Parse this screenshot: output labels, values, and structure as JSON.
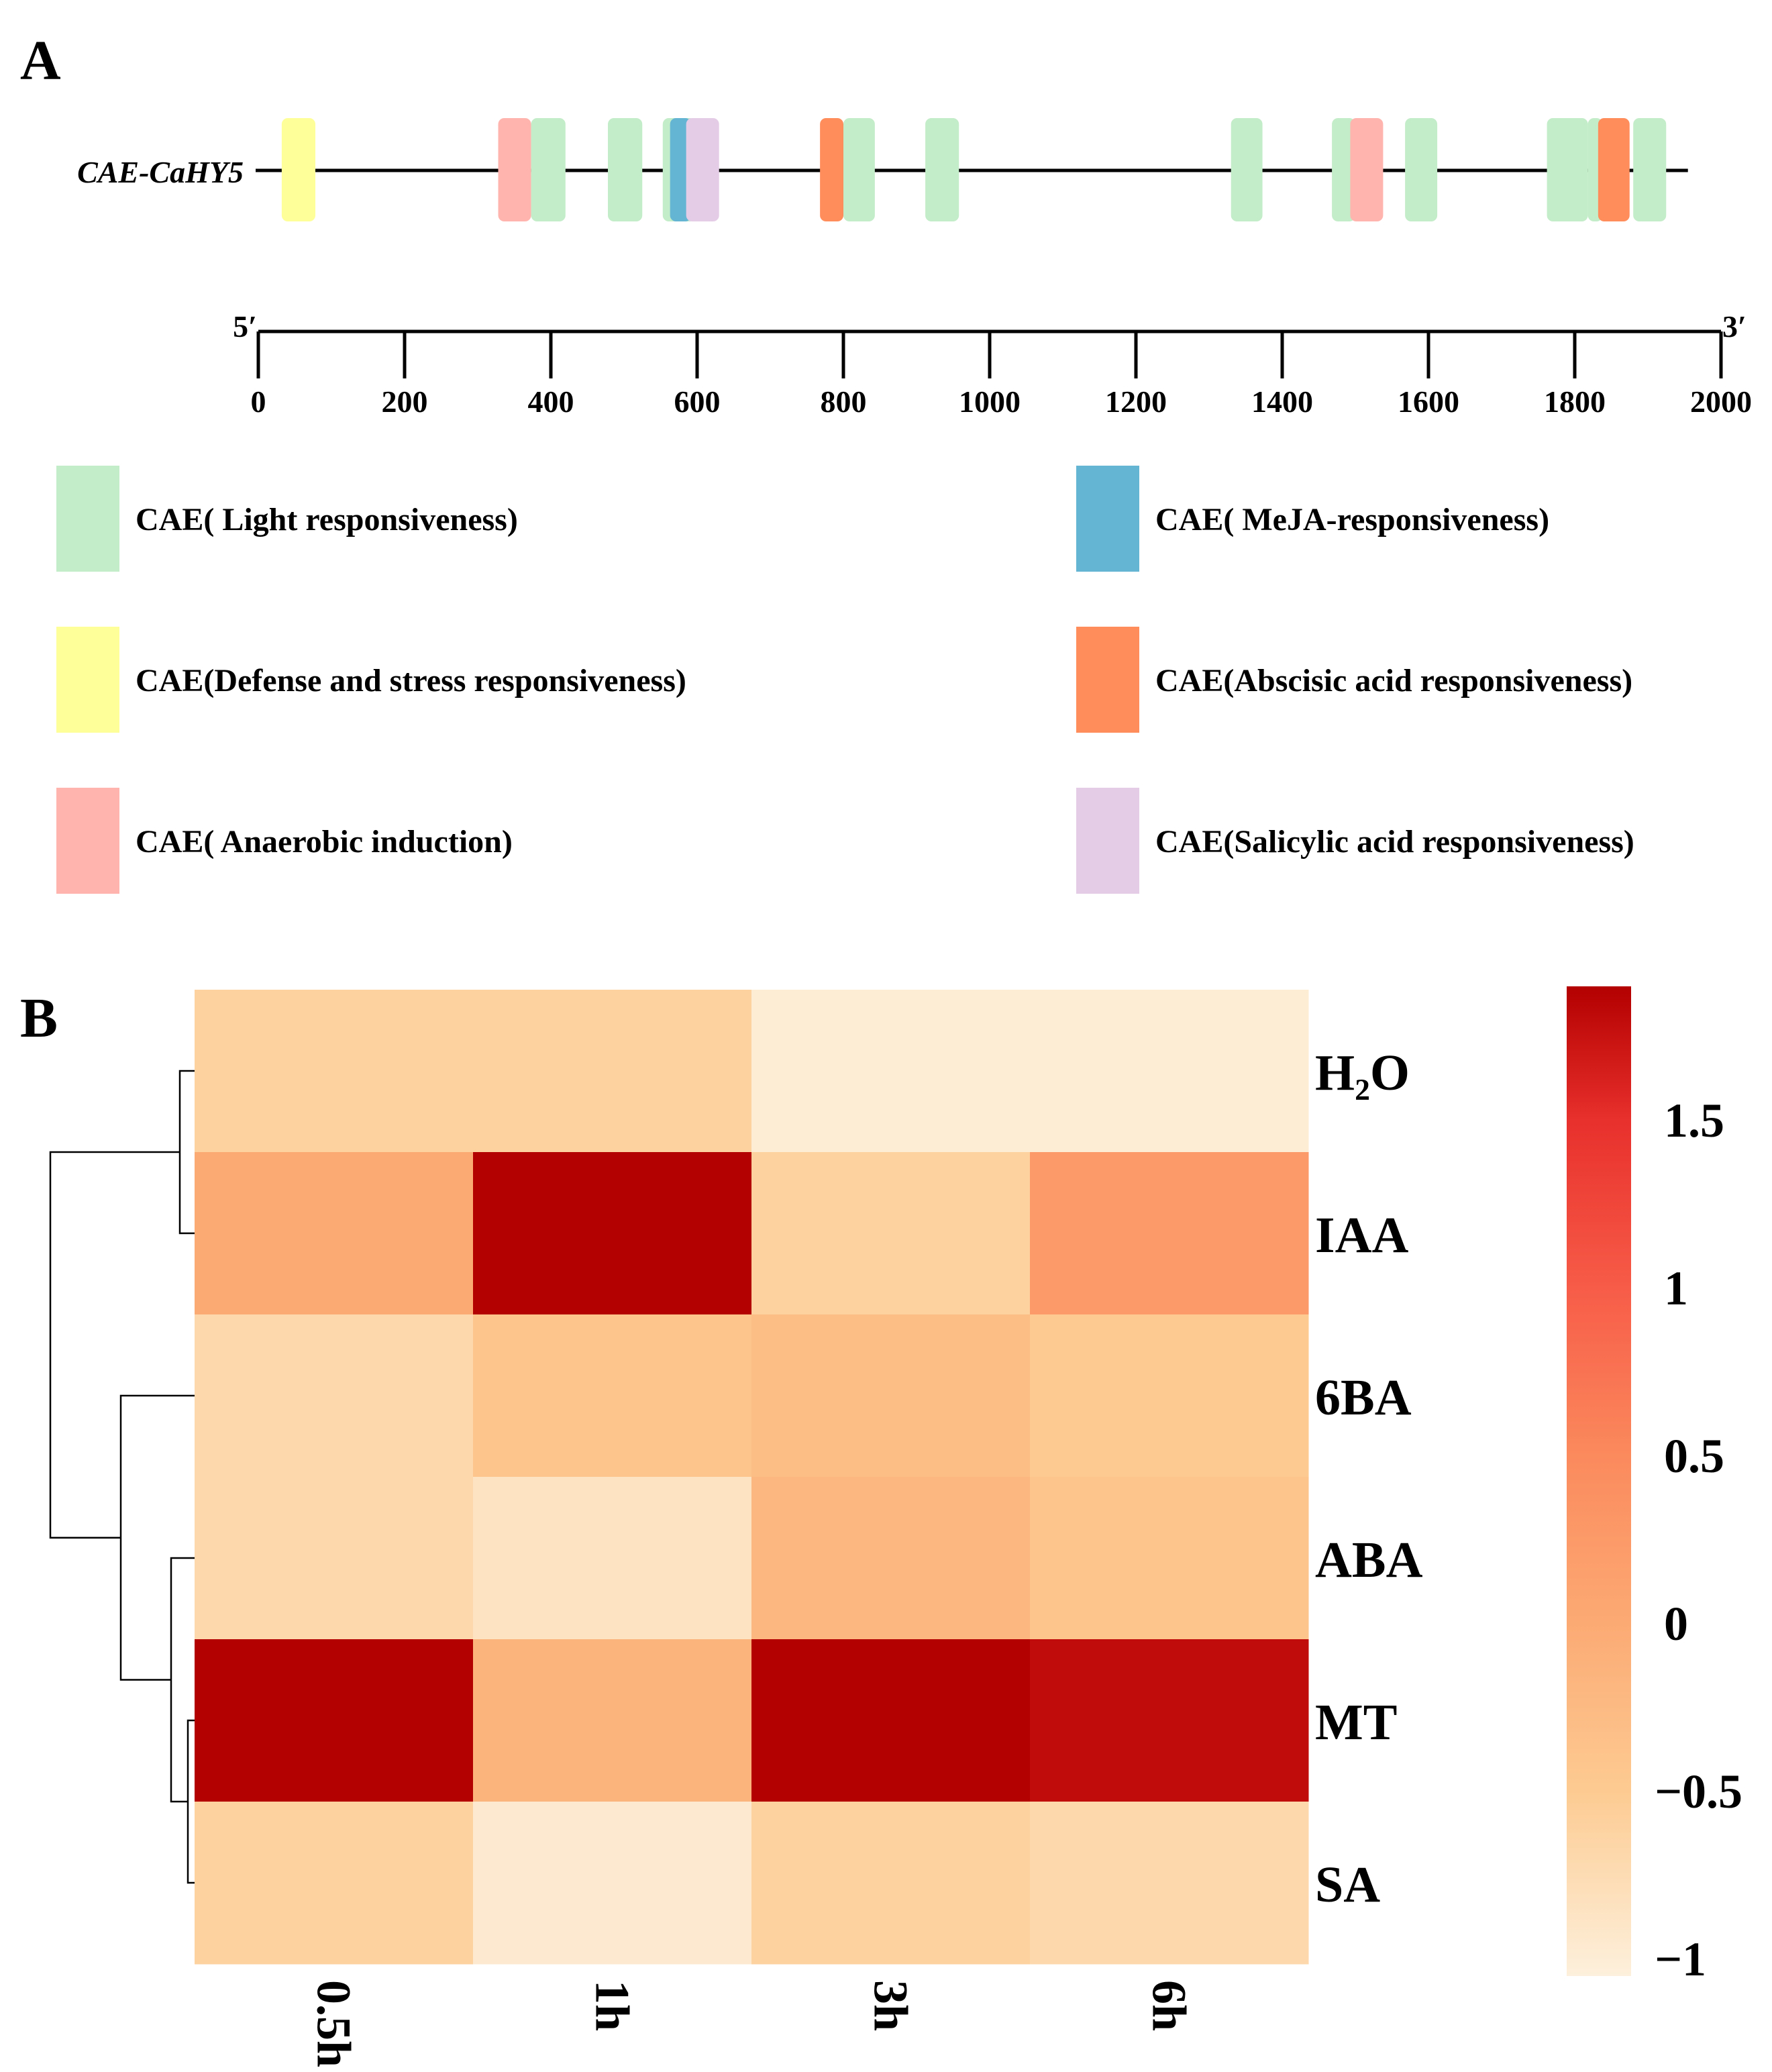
{
  "panel_a": {
    "letter": "A",
    "gene_name": "CAE-CaHY5",
    "five_prime": "5′",
    "three_prime": "3′",
    "axis": {
      "min": 0,
      "max": 2000,
      "ticks": [
        0,
        200,
        400,
        600,
        800,
        1000,
        1200,
        1400,
        1600,
        1800,
        2000
      ]
    },
    "sequence_end": 1930,
    "legend": [
      {
        "type": "light",
        "label": "CAE( Light responsiveness)",
        "color": "#c3ecc8"
      },
      {
        "type": "defense",
        "label": "CAE(Defense and stress responsiveness)",
        "color": "#ffff99"
      },
      {
        "type": "anaerobic",
        "label": "CAE( Anaerobic induction)",
        "color": "#ffb5ae"
      },
      {
        "type": "meja",
        "label": "CAE( MeJA-responsiveness)",
        "color": "#64b4d4"
      },
      {
        "type": "aba",
        "label": "CAE(Abscisic acid responsiveness)",
        "color": "#ff8d5c"
      },
      {
        "type": "sa",
        "label": "CAE(Salicylic acid responsiveness)",
        "color": "#e4cce6"
      }
    ],
    "elements": [
      {
        "type": "defense",
        "start": 32,
        "end": 78
      },
      {
        "type": "anaerobic",
        "start": 328,
        "end": 373
      },
      {
        "type": "light",
        "start": 373,
        "end": 420
      },
      {
        "type": "light",
        "start": 478,
        "end": 525
      },
      {
        "type": "light",
        "start": 553,
        "end": 598
      },
      {
        "type": "meja",
        "start": 563,
        "end": 592
      },
      {
        "type": "sa",
        "start": 585,
        "end": 630
      },
      {
        "type": "aba",
        "start": 768,
        "end": 800
      },
      {
        "type": "light",
        "start": 800,
        "end": 843
      },
      {
        "type": "light",
        "start": 912,
        "end": 958
      },
      {
        "type": "light",
        "start": 1330,
        "end": 1373
      },
      {
        "type": "light",
        "start": 1468,
        "end": 1500
      },
      {
        "type": "anaerobic",
        "start": 1493,
        "end": 1538
      },
      {
        "type": "light",
        "start": 1568,
        "end": 1612
      },
      {
        "type": "light",
        "start": 1762,
        "end": 1818
      },
      {
        "type": "light",
        "start": 1818,
        "end": 1838
      },
      {
        "type": "aba",
        "start": 1832,
        "end": 1875
      },
      {
        "type": "light",
        "start": 1880,
        "end": 1925
      }
    ]
  },
  "chart_data": {
    "type": "heatmap",
    "panel_letter": "B",
    "columns": [
      "0.5h",
      "1h",
      "3h",
      "6h"
    ],
    "rows": [
      "H₂O",
      "IAA",
      "6BA",
      "ABA",
      "MT",
      "SA"
    ],
    "values": [
      [
        -0.6,
        -0.6,
        -1.0,
        -1.0
      ],
      [
        0.0,
        1.9,
        -0.6,
        0.25
      ],
      [
        -0.7,
        -0.4,
        -0.3,
        -0.5
      ],
      [
        -0.7,
        -0.85,
        -0.2,
        -0.4
      ],
      [
        1.9,
        -0.15,
        1.9,
        1.8
      ],
      [
        -0.6,
        -0.95,
        -0.6,
        -0.7
      ]
    ],
    "color_scale": {
      "min": -1.05,
      "max": 1.9,
      "stops": [
        {
          "value": -1.05,
          "color": "#fdf0dc"
        },
        {
          "value": -0.5,
          "color": "#fdcb92"
        },
        {
          "value": 0.0,
          "color": "#fcaa74"
        },
        {
          "value": 0.5,
          "color": "#fb8a5d"
        },
        {
          "value": 1.0,
          "color": "#f75c48"
        },
        {
          "value": 1.5,
          "color": "#e8302c"
        },
        {
          "value": 1.9,
          "color": "#b30000"
        }
      ],
      "tick_values": [
        -1,
        -0.5,
        0,
        0.5,
        1,
        1.5
      ],
      "tick_labels": [
        "−1",
        "−0.5",
        "0",
        "0.5",
        "1",
        "1.5"
      ]
    },
    "row_dendrogram": true
  }
}
